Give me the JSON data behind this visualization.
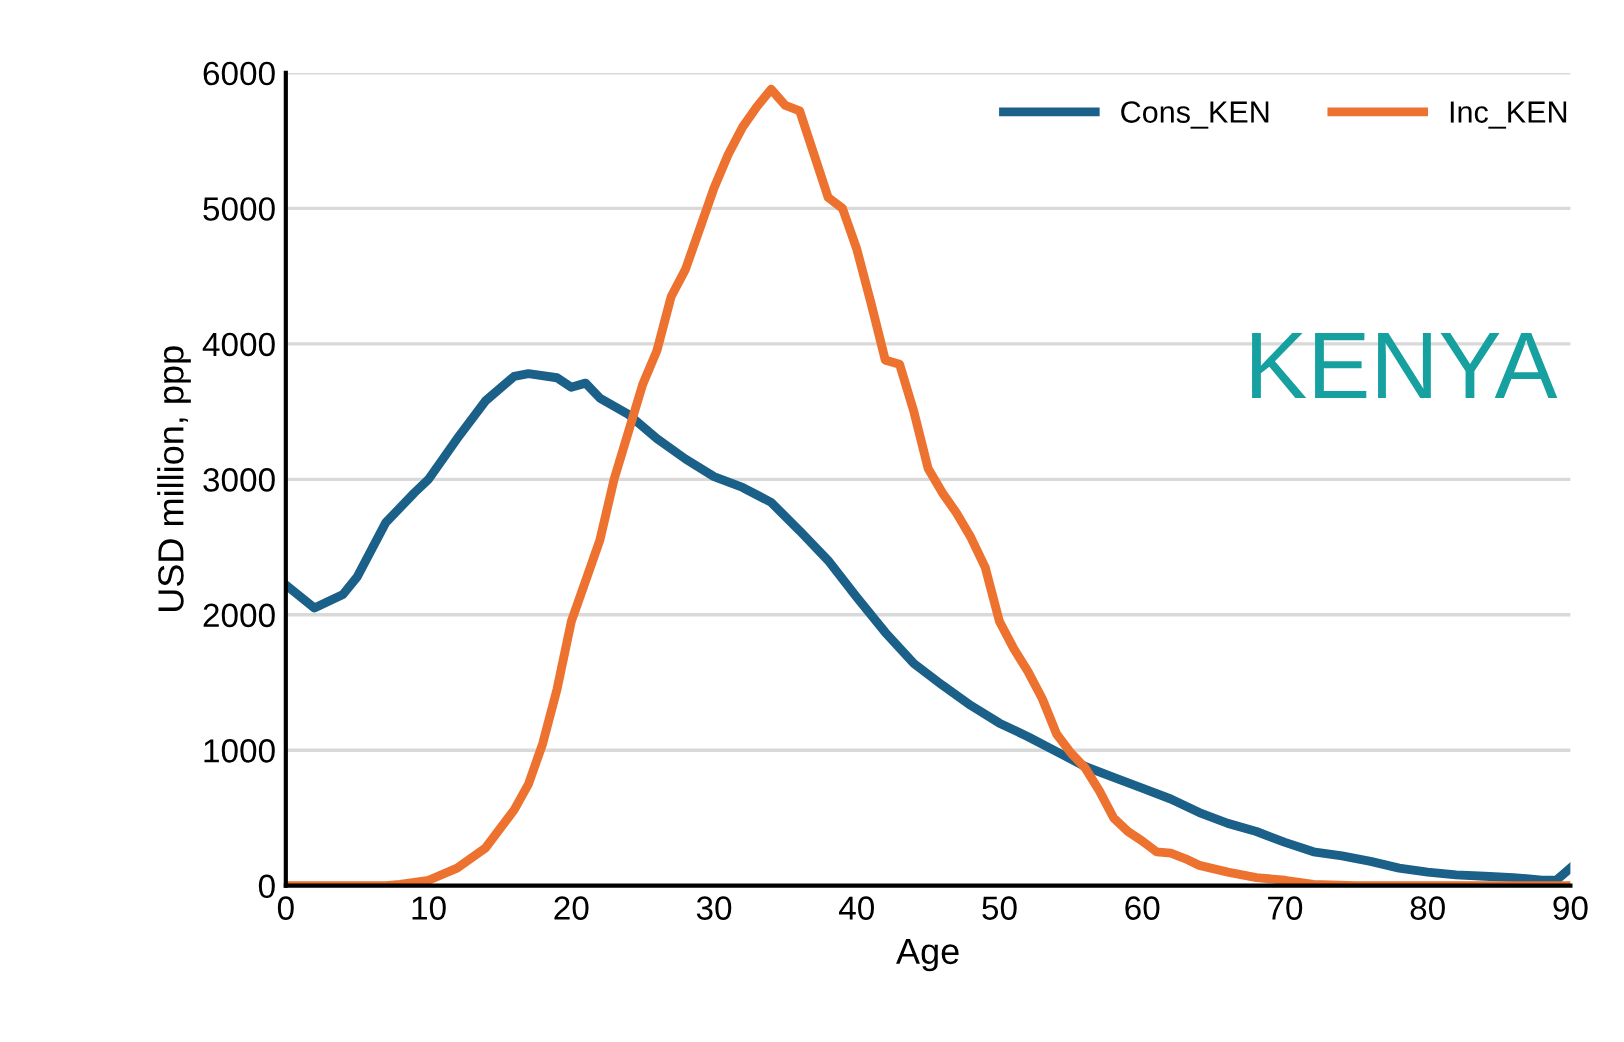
{
  "chart_data": {
    "type": "line",
    "xlabel": "Age",
    "ylabel": "USD million, ppp",
    "annotations": [
      "KENYA"
    ],
    "xlim": [
      0,
      90
    ],
    "xticks": [
      0,
      10,
      20,
      30,
      40,
      50,
      60,
      70,
      80,
      90
    ],
    "ylim": [
      0,
      6000
    ],
    "yticks": [
      0,
      1000,
      2000,
      3000,
      4000,
      5000,
      6000
    ],
    "grid": "y",
    "legend": "top right",
    "marker": "none",
    "line_style": "solid",
    "series": [
      {
        "name": "Cons_KEN",
        "color": "#1b6089",
        "x": [
          0,
          2,
          4,
          5,
          7,
          9,
          10,
          12,
          14,
          16,
          17,
          19,
          20,
          21,
          22,
          24,
          26,
          28,
          30,
          32,
          34,
          36,
          38,
          40,
          42,
          44,
          46,
          48,
          50,
          52,
          54,
          56,
          58,
          60,
          62,
          64,
          66,
          68,
          70,
          72,
          74,
          76,
          78,
          80,
          82,
          84,
          86,
          88,
          89,
          90
        ],
        "values": [
          2220,
          2050,
          2150,
          2280,
          2680,
          2900,
          3000,
          3300,
          3580,
          3760,
          3780,
          3750,
          3680,
          3710,
          3600,
          3480,
          3300,
          3150,
          3020,
          2940,
          2830,
          2620,
          2400,
          2130,
          1870,
          1640,
          1480,
          1330,
          1200,
          1100,
          990,
          880,
          800,
          720,
          640,
          540,
          460,
          400,
          320,
          250,
          220,
          180,
          130,
          100,
          80,
          70,
          60,
          40,
          40,
          130
        ]
      },
      {
        "name": "Inc_KEN",
        "color": "#ed7230",
        "x": [
          0,
          7,
          8,
          10,
          12,
          14,
          16,
          17,
          18,
          19,
          20,
          21,
          22,
          23,
          24,
          25,
          26,
          27,
          28,
          29,
          30,
          31,
          32,
          33,
          34,
          35,
          36,
          37,
          38,
          39,
          40,
          41,
          42,
          43,
          44,
          45,
          46,
          47,
          48,
          49,
          50,
          51,
          52,
          53,
          54,
          55,
          56,
          57,
          58,
          59,
          60,
          61,
          62,
          63,
          64,
          66,
          68,
          70,
          72,
          75,
          90
        ],
        "values": [
          0,
          0,
          10,
          40,
          130,
          280,
          560,
          750,
          1050,
          1450,
          1950,
          2250,
          2550,
          3000,
          3350,
          3700,
          3950,
          4350,
          4550,
          4850,
          5150,
          5400,
          5600,
          5750,
          5880,
          5760,
          5720,
          5400,
          5080,
          5000,
          4700,
          4300,
          3880,
          3850,
          3500,
          3080,
          2900,
          2750,
          2570,
          2350,
          1950,
          1750,
          1580,
          1380,
          1120,
          980,
          870,
          700,
          500,
          400,
          330,
          250,
          240,
          200,
          150,
          100,
          60,
          40,
          10,
          0,
          0
        ]
      }
    ]
  }
}
